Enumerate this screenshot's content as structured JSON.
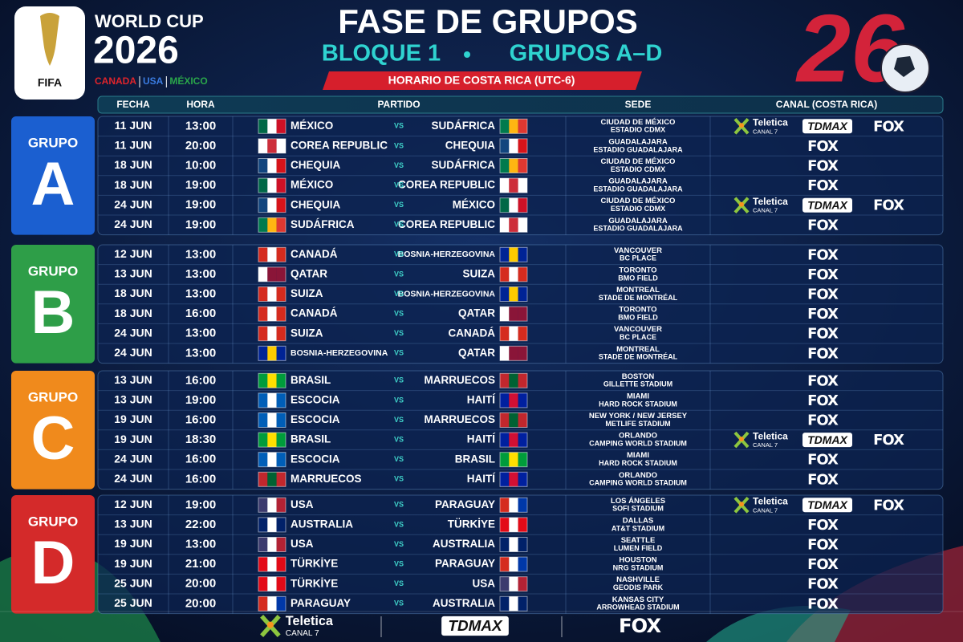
{
  "header": {
    "brand": "WORLD CUP",
    "year": "2026",
    "hosts": [
      "CANADA",
      "USA",
      "MÉXICO"
    ],
    "host_colors": [
      "#e0242b",
      "#3a7be0",
      "#2aa64a"
    ],
    "fifa": "FIFA",
    "emblem": "26"
  },
  "title": "FASE DE GRUPOS",
  "subtitle": [
    "BLOQUE 1",
    "GRUPOS A–D"
  ],
  "timezone": "HORARIO DE COSTA RICA (UTC-6)",
  "columns": [
    "FECHA",
    "HORA",
    "PARTIDO",
    "SEDE",
    "CANAL (COSTA RICA)"
  ],
  "vs": "VS",
  "groups": [
    {
      "label": "GRUPO",
      "letter": "A",
      "color": "#1b5fd0",
      "matches": [
        {
          "date": "11 JUN",
          "time": "13:00",
          "home": {
            "name": "MÉXICO",
            "flag": [
              "#006847",
              "#ffffff",
              "#ce1126"
            ]
          },
          "away": {
            "name": "SUDÁFRICA",
            "flag": [
              "#007a4d",
              "#ffb612",
              "#de3831"
            ]
          },
          "venue": [
            "CIUDAD DE MÉXICO",
            "ESTADIO CDMX"
          ],
          "channels": [
            {
              "name": "Teletica",
              "sub": "CANAL 7"
            },
            "TDMAX",
            "FOX"
          ]
        },
        {
          "date": "11 JUN",
          "time": "20:00",
          "home": {
            "name": "COREA REPUBLIC",
            "flag": [
              "#ffffff",
              "#cd2e3a",
              "#ffffff"
            ]
          },
          "away": {
            "name": "CHEQUIA",
            "flag": [
              "#11457e",
              "#ffffff",
              "#d7141a"
            ]
          },
          "venue": [
            "GUADALAJARA",
            "ESTADIO GUADALAJARA"
          ],
          "channels": [
            "FOX"
          ]
        },
        {
          "date": "18 JUN",
          "time": "10:00",
          "home": {
            "name": "CHEQUIA",
            "flag": [
              "#11457e",
              "#ffffff",
              "#d7141a"
            ]
          },
          "away": {
            "name": "SUDÁFRICA",
            "flag": [
              "#007a4d",
              "#ffb612",
              "#de3831"
            ]
          },
          "venue": [
            "CIUDAD DE MÉXICO",
            "ESTADIO CDMX"
          ],
          "channels": [
            "FOX"
          ]
        },
        {
          "date": "18 JUN",
          "time": "19:00",
          "home": {
            "name": "MÉXICO",
            "flag": [
              "#006847",
              "#ffffff",
              "#ce1126"
            ]
          },
          "away": {
            "name": "COREA REPUBLIC",
            "flag": [
              "#ffffff",
              "#cd2e3a",
              "#ffffff"
            ]
          },
          "venue": [
            "GUADALAJARA",
            "ESTADIO GUADALAJARA"
          ],
          "channels": [
            "FOX"
          ]
        },
        {
          "date": "24 JUN",
          "time": "19:00",
          "home": {
            "name": "CHEQUIA",
            "flag": [
              "#11457e",
              "#ffffff",
              "#d7141a"
            ]
          },
          "away": {
            "name": "MÉXICO",
            "flag": [
              "#006847",
              "#ffffff",
              "#ce1126"
            ]
          },
          "venue": [
            "CIUDAD DE MÉXICO",
            "ESTADIO CDMX"
          ],
          "channels": [
            {
              "name": "Teletica",
              "sub": "CANAL 7"
            },
            "TDMAX",
            "FOX"
          ]
        },
        {
          "date": "24 JUN",
          "time": "19:00",
          "home": {
            "name": "SUDÁFRICA",
            "flag": [
              "#007a4d",
              "#ffb612",
              "#de3831"
            ]
          },
          "away": {
            "name": "COREA REPUBLIC",
            "flag": [
              "#ffffff",
              "#cd2e3a",
              "#ffffff"
            ]
          },
          "venue": [
            "GUADALAJARA",
            "ESTADIO GUADALAJARA"
          ],
          "channels": [
            "FOX"
          ]
        }
      ]
    },
    {
      "label": "GRUPO",
      "letter": "B",
      "color": "#2e9e48",
      "matches": [
        {
          "date": "12 JUN",
          "time": "13:00",
          "home": {
            "name": "CANADÁ",
            "flag": [
              "#d52b1e",
              "#ffffff",
              "#d52b1e"
            ]
          },
          "away": {
            "name": "BOSNIA-HERZEGOVINA",
            "flag": [
              "#002395",
              "#fecb00",
              "#002395"
            ]
          },
          "venue": [
            "VANCOUVER",
            "BC PLACE"
          ],
          "channels": [
            "FOX"
          ]
        },
        {
          "date": "13 JUN",
          "time": "13:00",
          "home": {
            "name": "QATAR",
            "flag": [
              "#ffffff",
              "#8a1538",
              "#8a1538"
            ]
          },
          "away": {
            "name": "SUIZA",
            "flag": [
              "#d52b1e",
              "#ffffff",
              "#d52b1e"
            ]
          },
          "venue": [
            "TORONTO",
            "BMO FIELD"
          ],
          "channels": [
            "FOX"
          ]
        },
        {
          "date": "18 JUN",
          "time": "13:00",
          "home": {
            "name": "SUIZA",
            "flag": [
              "#d52b1e",
              "#ffffff",
              "#d52b1e"
            ]
          },
          "away": {
            "name": "BOSNIA-HERZEGOVINA",
            "flag": [
              "#002395",
              "#fecb00",
              "#002395"
            ]
          },
          "venue": [
            "MONTREAL",
            "STADE DE MONTRÉAL"
          ],
          "channels": [
            "FOX"
          ]
        },
        {
          "date": "18 JUN",
          "time": "16:00",
          "home": {
            "name": "CANADÁ",
            "flag": [
              "#d52b1e",
              "#ffffff",
              "#d52b1e"
            ]
          },
          "away": {
            "name": "QATAR",
            "flag": [
              "#ffffff",
              "#8a1538",
              "#8a1538"
            ]
          },
          "venue": [
            "TORONTO",
            "BMO FIELD"
          ],
          "channels": [
            "FOX"
          ]
        },
        {
          "date": "24 JUN",
          "time": "13:00",
          "home": {
            "name": "SUIZA",
            "flag": [
              "#d52b1e",
              "#ffffff",
              "#d52b1e"
            ]
          },
          "away": {
            "name": "CANADÁ",
            "flag": [
              "#d52b1e",
              "#ffffff",
              "#d52b1e"
            ]
          },
          "venue": [
            "VANCOUVER",
            "BC PLACE"
          ],
          "channels": [
            "FOX"
          ]
        },
        {
          "date": "24 JUN",
          "time": "13:00",
          "home": {
            "name": "BOSNIA-HERZEGOVINA",
            "flag": [
              "#002395",
              "#fecb00",
              "#002395"
            ]
          },
          "away": {
            "name": "QATAR",
            "flag": [
              "#ffffff",
              "#8a1538",
              "#8a1538"
            ]
          },
          "venue": [
            "MONTREAL",
            "STADE DE MONTRÉAL"
          ],
          "channels": [
            "FOX"
          ]
        }
      ]
    },
    {
      "label": "GRUPO",
      "letter": "C",
      "color": "#f08a1c",
      "matches": [
        {
          "date": "13 JUN",
          "time": "16:00",
          "home": {
            "name": "BRASIL",
            "flag": [
              "#009c3b",
              "#ffdf00",
              "#009c3b"
            ]
          },
          "away": {
            "name": "MARRUECOS",
            "flag": [
              "#c1272d",
              "#006233",
              "#c1272d"
            ]
          },
          "venue": [
            "BOSTON",
            "GILLETTE STADIUM"
          ],
          "channels": [
            "FOX"
          ]
        },
        {
          "date": "13 JUN",
          "time": "19:00",
          "home": {
            "name": "ESCOCIA",
            "flag": [
              "#005eb8",
              "#ffffff",
              "#005eb8"
            ]
          },
          "away": {
            "name": "HAITÍ",
            "flag": [
              "#00209f",
              "#d21034",
              "#00209f"
            ]
          },
          "venue": [
            "MIAMI",
            "HARD ROCK STADIUM"
          ],
          "channels": [
            "FOX"
          ]
        },
        {
          "date": "19 JUN",
          "time": "16:00",
          "home": {
            "name": "ESCOCIA",
            "flag": [
              "#005eb8",
              "#ffffff",
              "#005eb8"
            ]
          },
          "away": {
            "name": "MARRUECOS",
            "flag": [
              "#c1272d",
              "#006233",
              "#c1272d"
            ]
          },
          "venue": [
            "NEW YORK / NEW JERSEY",
            "METLIFE STADIUM"
          ],
          "channels": [
            "FOX"
          ]
        },
        {
          "date": "19 JUN",
          "time": "18:30",
          "home": {
            "name": "BRASIL",
            "flag": [
              "#009c3b",
              "#ffdf00",
              "#009c3b"
            ]
          },
          "away": {
            "name": "HAITÍ",
            "flag": [
              "#00209f",
              "#d21034",
              "#00209f"
            ]
          },
          "venue": [
            "ORLANDO",
            "CAMPING WORLD STADIUM"
          ],
          "channels": [
            {
              "name": "Teletica",
              "sub": "CANAL 7"
            },
            "TDMAX",
            "FOX"
          ]
        },
        {
          "date": "24 JUN",
          "time": "16:00",
          "home": {
            "name": "ESCOCIA",
            "flag": [
              "#005eb8",
              "#ffffff",
              "#005eb8"
            ]
          },
          "away": {
            "name": "BRASIL",
            "flag": [
              "#009c3b",
              "#ffdf00",
              "#009c3b"
            ]
          },
          "venue": [
            "MIAMI",
            "HARD ROCK STADIUM"
          ],
          "channels": [
            "FOX"
          ]
        },
        {
          "date": "24 JUN",
          "time": "16:00",
          "home": {
            "name": "MARRUECOS",
            "flag": [
              "#c1272d",
              "#006233",
              "#c1272d"
            ]
          },
          "away": {
            "name": "HAITÍ",
            "flag": [
              "#00209f",
              "#d21034",
              "#00209f"
            ]
          },
          "venue": [
            "ORLANDO",
            "CAMPING WORLD STADIUM"
          ],
          "channels": [
            "FOX"
          ]
        }
      ]
    },
    {
      "label": "GRUPO",
      "letter": "D",
      "color": "#d42a2a",
      "matches": [
        {
          "date": "12 JUN",
          "time": "19:00",
          "home": {
            "name": "USA",
            "flag": [
              "#3c3b6e",
              "#ffffff",
              "#b22234"
            ]
          },
          "away": {
            "name": "PARAGUAY",
            "flag": [
              "#d52b1e",
              "#ffffff",
              "#0038a8"
            ]
          },
          "venue": [
            "LOS ÁNGELES",
            "SOFI STADIUM"
          ],
          "channels": [
            {
              "name": "Teletica",
              "sub": "CANAL 7"
            },
            "TDMAX",
            "FOX"
          ]
        },
        {
          "date": "13 JUN",
          "time": "22:00",
          "home": {
            "name": "AUSTRALIA",
            "flag": [
              "#012169",
              "#ffffff",
              "#012169"
            ]
          },
          "away": {
            "name": "TÜRKİYE",
            "flag": [
              "#e30a17",
              "#ffffff",
              "#e30a17"
            ]
          },
          "venue": [
            "DALLAS",
            "AT&T STADIUM"
          ],
          "channels": [
            "FOX"
          ]
        },
        {
          "date": "19 JUN",
          "time": "13:00",
          "home": {
            "name": "USA",
            "flag": [
              "#3c3b6e",
              "#ffffff",
              "#b22234"
            ]
          },
          "away": {
            "name": "AUSTRALIA",
            "flag": [
              "#012169",
              "#ffffff",
              "#012169"
            ]
          },
          "venue": [
            "SEATTLE",
            "LUMEN FIELD"
          ],
          "channels": [
            "FOX"
          ]
        },
        {
          "date": "19 JUN",
          "time": "21:00",
          "home": {
            "name": "TÜRKİYE",
            "flag": [
              "#e30a17",
              "#ffffff",
              "#e30a17"
            ]
          },
          "away": {
            "name": "PARAGUAY",
            "flag": [
              "#d52b1e",
              "#ffffff",
              "#0038a8"
            ]
          },
          "venue": [
            "HOUSTON",
            "NRG STADIUM"
          ],
          "channels": [
            "FOX"
          ]
        },
        {
          "date": "25 JUN",
          "time": "20:00",
          "home": {
            "name": "TÜRKİYE",
            "flag": [
              "#e30a17",
              "#ffffff",
              "#e30a17"
            ]
          },
          "away": {
            "name": "USA",
            "flag": [
              "#3c3b6e",
              "#ffffff",
              "#b22234"
            ]
          },
          "venue": [
            "NASHVILLE",
            "GEODIS PARK"
          ],
          "channels": [
            "FOX"
          ]
        },
        {
          "date": "25 JUN",
          "time": "20:00",
          "home": {
            "name": "PARAGUAY",
            "flag": [
              "#d52b1e",
              "#ffffff",
              "#0038a8"
            ]
          },
          "away": {
            "name": "AUSTRALIA",
            "flag": [
              "#012169",
              "#ffffff",
              "#012169"
            ]
          },
          "venue": [
            "KANSAS CITY",
            "ARROWHEAD STADIUM"
          ],
          "channels": [
            "FOX"
          ]
        }
      ]
    }
  ],
  "footer_channels": [
    {
      "name": "Teletica",
      "sub": "CANAL 7"
    },
    "TDMAX",
    "FOX"
  ]
}
